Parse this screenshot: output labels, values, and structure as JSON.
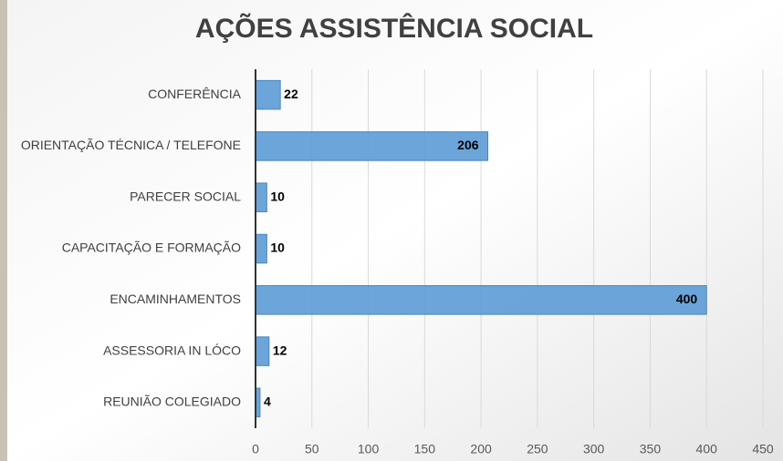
{
  "chart_data": {
    "type": "bar",
    "orientation": "horizontal",
    "title": "AÇÕES ASSISTÊNCIA SOCIAL",
    "categories": [
      "CONFERÊNCIA",
      "ORIENTAÇÃO TÉCNICA / TELEFONE",
      "PARECER SOCIAL",
      "CAPACITAÇÃO E FORMAÇÃO",
      "ENCAMINHAMENTOS",
      "ASSESSORIA IN LÓCO",
      "REUNIÃO COLEGIADO"
    ],
    "values": [
      22,
      206,
      10,
      10,
      400,
      12,
      4
    ],
    "color": "#5b9bd5",
    "xlim": [
      0,
      450
    ],
    "xticks": [
      0,
      50,
      100,
      150,
      200,
      250,
      300,
      350,
      400,
      450
    ],
    "grid": true
  }
}
